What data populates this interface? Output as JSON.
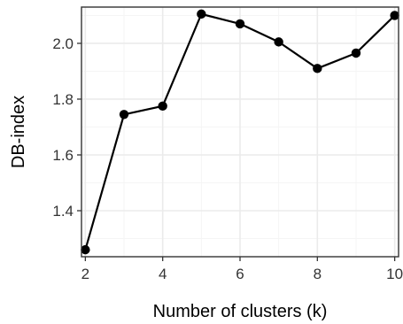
{
  "chart_data": {
    "type": "line",
    "title": "",
    "xlabel": "Number of clusters (k)",
    "ylabel": "DB-index",
    "x": [
      2,
      3,
      4,
      5,
      6,
      7,
      8,
      9,
      10
    ],
    "series": [
      {
        "values": [
          1.26,
          1.745,
          1.775,
          2.105,
          2.07,
          2.005,
          1.91,
          1.965,
          2.1
        ]
      }
    ],
    "xlim": [
      1.9,
      10.1
    ],
    "ylim": [
      1.235,
      2.13
    ],
    "x_ticks": [
      2,
      4,
      6,
      8,
      10
    ],
    "x_tick_labels": [
      "2",
      "4",
      "6",
      "8",
      "10"
    ],
    "x_minor_ticks": [
      3,
      5,
      7,
      9
    ],
    "y_ticks": [
      1.4,
      1.6,
      1.8,
      2.0
    ],
    "y_tick_labels": [
      "1.4",
      "1.6",
      "1.8",
      "2.0"
    ],
    "y_minor_ticks": [
      1.3,
      1.5,
      1.7,
      1.9,
      2.1
    ],
    "grid": true,
    "legend": "none",
    "colors": {
      "line": "#000000",
      "point": "#000000",
      "grid_major": "#ebebeb",
      "grid_minor": "#f5f5f5",
      "panel_border": "#333333",
      "tick_mark": "#333333",
      "background": "#ffffff"
    }
  }
}
